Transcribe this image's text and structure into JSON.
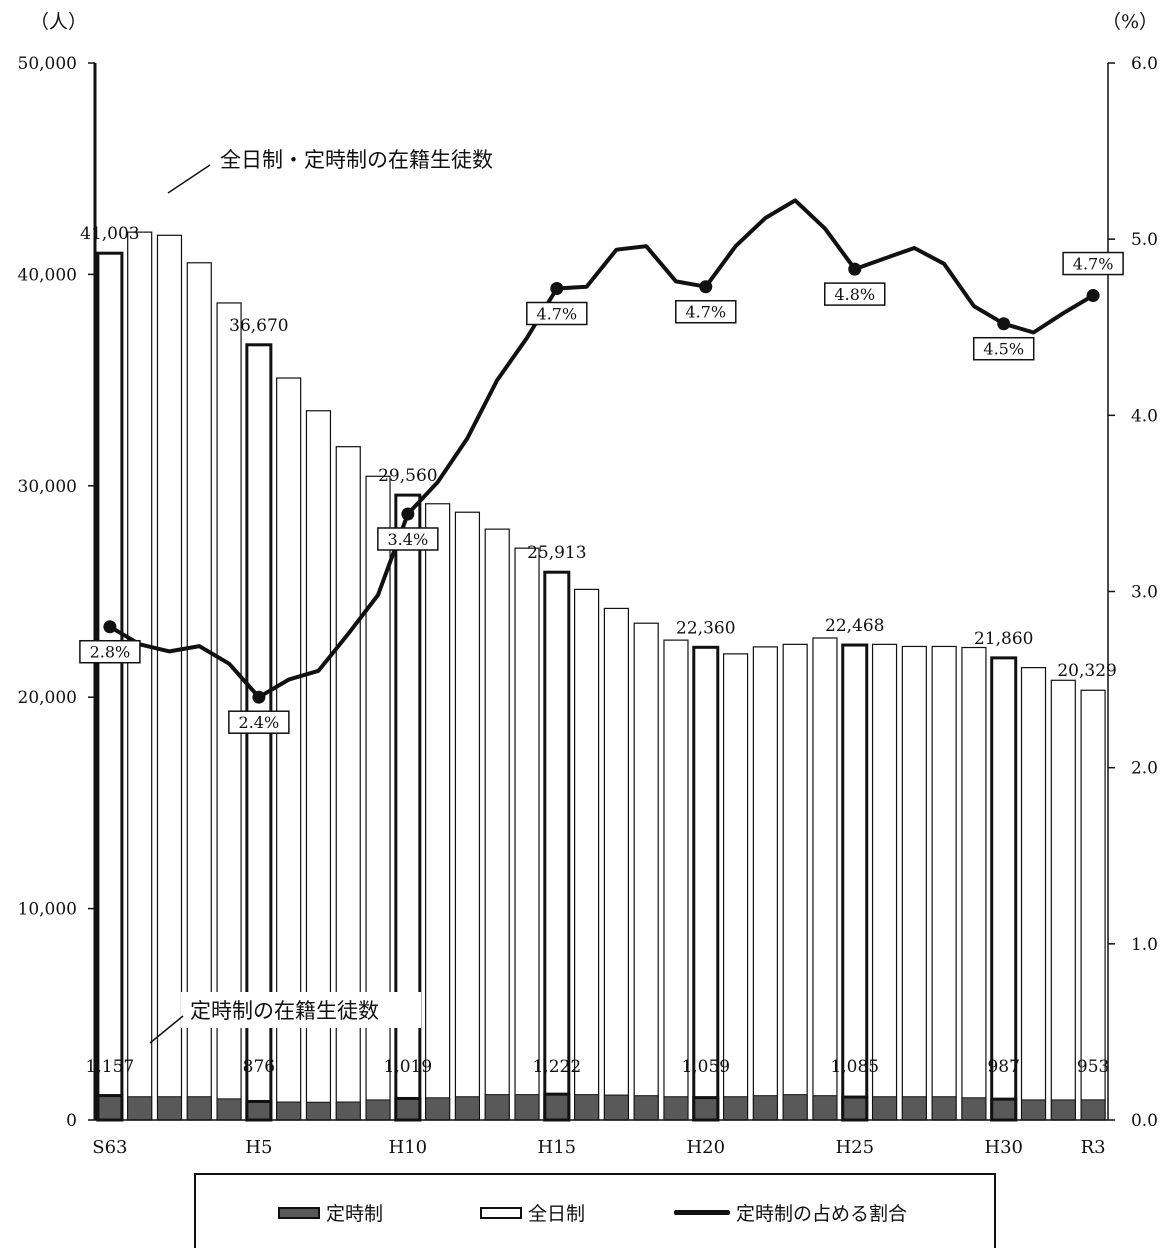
{
  "chart_data": {
    "type": "bar",
    "y_left_unit": "（人）",
    "y_right_unit": "（%）",
    "ylim_left": [
      0,
      50000
    ],
    "ylim_right": [
      0,
      6.0
    ],
    "left_ticks": [
      "0",
      "10,000",
      "20,000",
      "30,000",
      "40,000",
      "50,000"
    ],
    "right_ticks": [
      "0.0",
      "1.0",
      "2.0",
      "3.0",
      "4.0",
      "5.0",
      "6.0"
    ],
    "x_labels": [
      {
        "index": 0,
        "text": "S63"
      },
      {
        "index": 5,
        "text": "H5"
      },
      {
        "index": 10,
        "text": "H10"
      },
      {
        "index": 15,
        "text": "H15"
      },
      {
        "index": 20,
        "text": "H20"
      },
      {
        "index": 25,
        "text": "H25"
      },
      {
        "index": 30,
        "text": "H30"
      },
      {
        "index": 33,
        "text": "R3"
      }
    ],
    "series": [
      {
        "name": "全日制",
        "kind": "bar",
        "values": [
          41003,
          42000,
          41850,
          40550,
          38650,
          36670,
          35100,
          33550,
          31850,
          30450,
          29560,
          29150,
          28750,
          27950,
          27050,
          25913,
          25100,
          24200,
          23500,
          22700,
          22360,
          22050,
          22380,
          22500,
          22800,
          22468,
          22500,
          22400,
          22400,
          22350,
          21860,
          21400,
          20800,
          20329
        ]
      },
      {
        "name": "定時制",
        "kind": "bar",
        "values": [
          1157,
          1100,
          1100,
          1100,
          1000,
          876,
          850,
          840,
          850,
          950,
          1019,
          1050,
          1100,
          1200,
          1200,
          1222,
          1200,
          1180,
          1150,
          1100,
          1059,
          1100,
          1150,
          1200,
          1150,
          1085,
          1100,
          1100,
          1100,
          1050,
          987,
          950,
          950,
          953
        ]
      },
      {
        "name": "定時制の占める割合",
        "kind": "line",
        "values": [
          2.8,
          2.7,
          2.66,
          2.69,
          2.59,
          2.4,
          2.5,
          2.55,
          2.76,
          2.98,
          3.44,
          3.62,
          3.87,
          4.2,
          4.44,
          4.72,
          4.73,
          4.94,
          4.96,
          4.76,
          4.73,
          4.96,
          5.12,
          5.22,
          5.06,
          4.83,
          4.89,
          4.95,
          4.86,
          4.62,
          4.52,
          4.47,
          4.58,
          4.68
        ]
      }
    ],
    "highlight_indices": [
      0,
      5,
      10,
      15,
      20,
      25,
      30
    ],
    "total_labels": [
      {
        "index": 0,
        "text": "41,003"
      },
      {
        "index": 5,
        "text": "36,670"
      },
      {
        "index": 10,
        "text": "29,560"
      },
      {
        "index": 15,
        "text": "25,913"
      },
      {
        "index": 20,
        "text": "22,360"
      },
      {
        "index": 25,
        "text": "22,468"
      },
      {
        "index": 30,
        "text": "21,860"
      },
      {
        "index": 33,
        "text": "20,329"
      }
    ],
    "part_labels": [
      {
        "index": 0,
        "text": "1,157"
      },
      {
        "index": 5,
        "text": "876"
      },
      {
        "index": 10,
        "text": "1,019"
      },
      {
        "index": 15,
        "text": "1,222"
      },
      {
        "index": 20,
        "text": "1,059"
      },
      {
        "index": 25,
        "text": "1,085"
      },
      {
        "index": 30,
        "text": "987"
      },
      {
        "index": 33,
        "text": "953"
      }
    ],
    "marker_indices": [
      0,
      5,
      10,
      15,
      20,
      25,
      30,
      33
    ],
    "pct_labels": [
      {
        "index": 0,
        "text": "2.8%",
        "pos": "below"
      },
      {
        "index": 5,
        "text": "2.4%",
        "pos": "below"
      },
      {
        "index": 10,
        "text": "3.4%",
        "pos": "below"
      },
      {
        "index": 15,
        "text": "4.7%",
        "pos": "below"
      },
      {
        "index": 20,
        "text": "4.7%",
        "pos": "below"
      },
      {
        "index": 25,
        "text": "4.8%",
        "pos": "below"
      },
      {
        "index": 30,
        "text": "4.5%",
        "pos": "below"
      },
      {
        "index": 33,
        "text": "4.7%",
        "pos": "above"
      }
    ],
    "annotations": {
      "total": "全日制・定時制の在籍生徒数",
      "part": "定時制の在籍生徒数"
    },
    "legend": [
      "定時制",
      "全日制",
      "定時制の占める割合"
    ],
    "grid": false
  }
}
